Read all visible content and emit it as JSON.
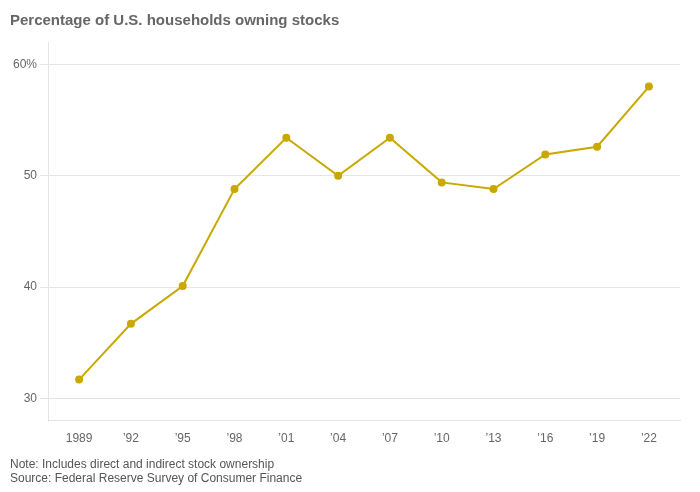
{
  "chart_data": {
    "type": "line",
    "title": "Percentage of U.S. households owning stocks",
    "x": [
      1989,
      1992,
      1995,
      1998,
      2001,
      2004,
      2007,
      2010,
      2013,
      2016,
      2019,
      2022
    ],
    "values": [
      31.7,
      36.7,
      40.1,
      48.8,
      53.4,
      50.0,
      53.4,
      49.4,
      48.8,
      51.9,
      52.6,
      58.0
    ],
    "color": "#C9A800",
    "marker": "circle",
    "xlim": [
      1987.2,
      2023.8
    ],
    "xticks": [
      1989,
      {
        "value": 1992,
        "label": "’92"
      },
      {
        "value": 1995,
        "label": "’95"
      },
      {
        "value": 1998,
        "label": "’98"
      },
      {
        "value": 2001,
        "label": "’01"
      },
      {
        "value": 2004,
        "label": "’04"
      },
      {
        "value": 2007,
        "label": "’07"
      },
      {
        "value": 2010,
        "label": "’10"
      },
      {
        "value": 2013,
        "label": "’13"
      },
      {
        "value": 2016,
        "label": "’16"
      },
      {
        "value": 2019,
        "label": "’19"
      },
      {
        "value": 2022,
        "label": "’22"
      }
    ],
    "ylim": [
      28,
      62
    ],
    "yticks": [
      30,
      40,
      50,
      {
        "value": 60,
        "label": "60%"
      }
    ],
    "grid": "y",
    "annotations": [
      "Note: Includes direct and indirect stock ownership",
      "Source: Federal Reserve Survey of Consumer Finance"
    ]
  }
}
